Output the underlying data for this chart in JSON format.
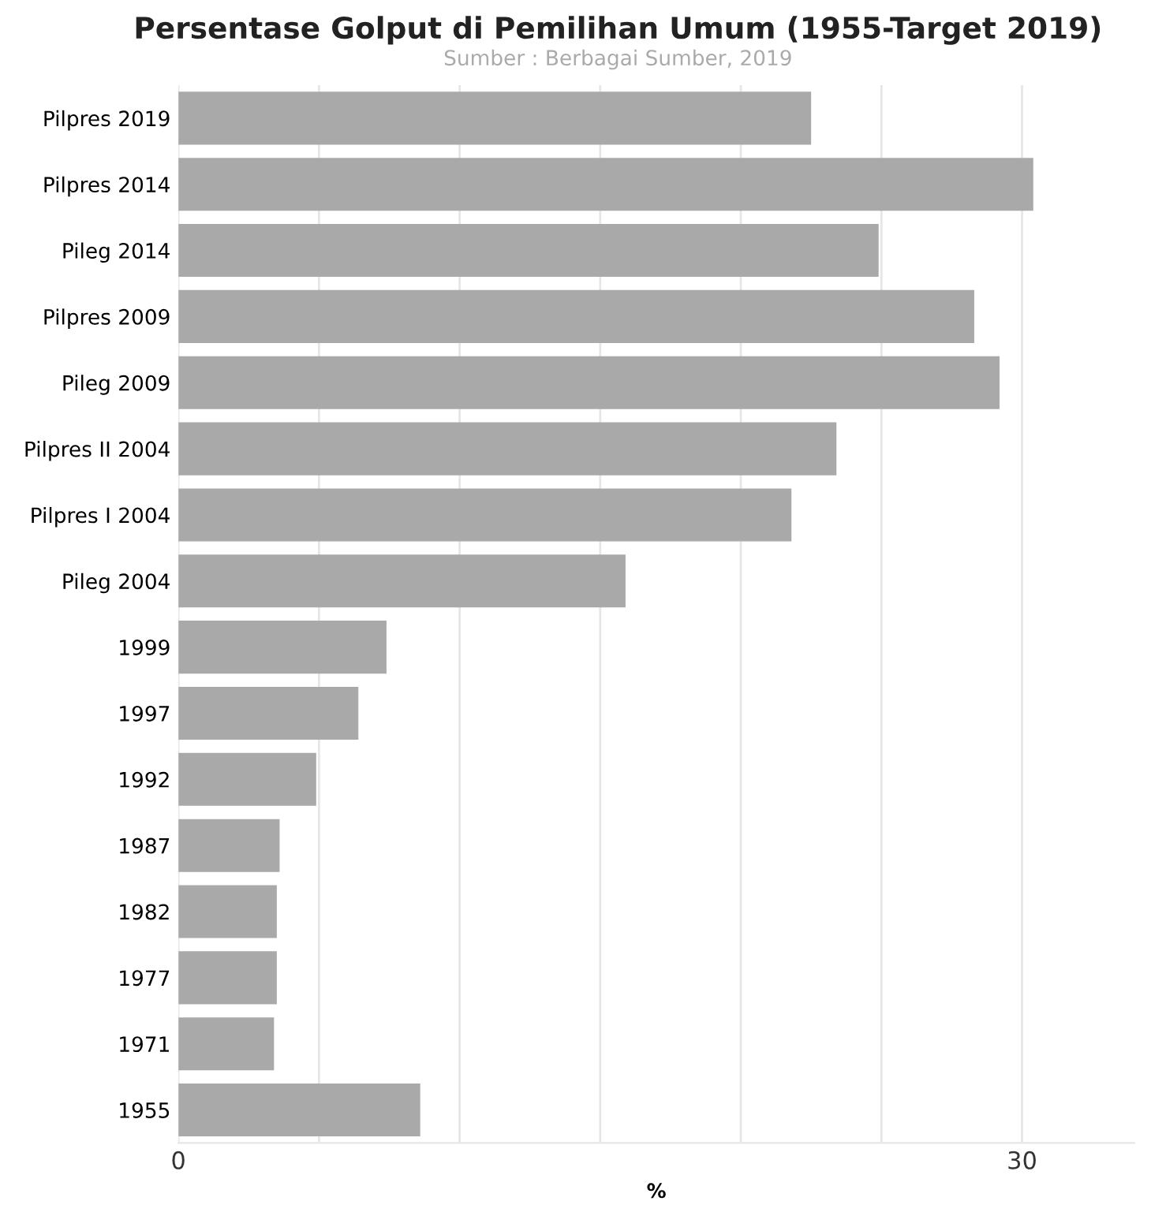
{
  "chart_data": {
    "type": "bar",
    "orientation": "horizontal",
    "title": "Persentase Golput di Pemilihan Umum (1955-Target 2019)",
    "subtitle": "Sumber : Berbagai Sumber, 2019",
    "xlabel": "%",
    "categories": [
      "Pilpres 2019",
      "Pilpres 2014",
      "Pileg 2014",
      "Pilpres 2009",
      "Pileg 2009",
      "Pilpres II 2004",
      "Pilpres I 2004",
      "Pileg 2004",
      "1999",
      "1997",
      "1992",
      "1987",
      "1982",
      "1977",
      "1971",
      "1955"
    ],
    "values": [
      22.5,
      30.4,
      24.9,
      28.3,
      29.2,
      23.4,
      21.8,
      15.9,
      7.4,
      6.4,
      4.9,
      3.6,
      3.5,
      3.5,
      3.4,
      8.6
    ],
    "color": "#a9a9a9",
    "xlim": [
      0,
      34
    ],
    "xticks": [
      0,
      {
        "value": 5,
        "label": null
      },
      {
        "value": 10,
        "label": null
      },
      {
        "value": 15,
        "label": null
      },
      {
        "value": 20,
        "label": null
      },
      {
        "value": 25,
        "label": null
      },
      30
    ],
    "grid": "x"
  }
}
